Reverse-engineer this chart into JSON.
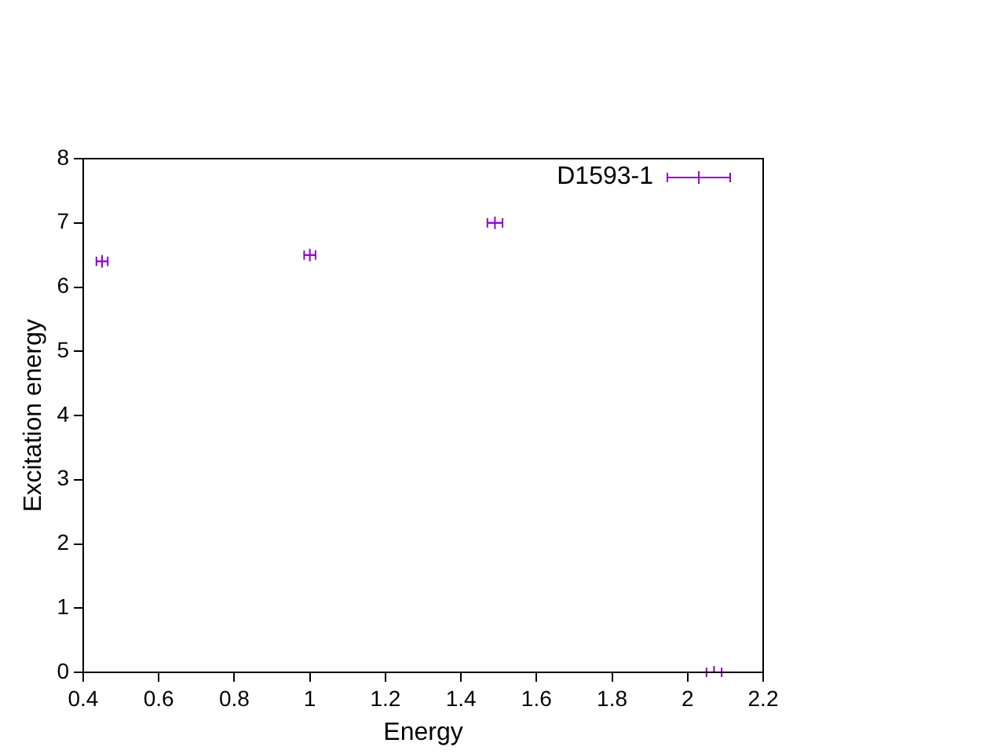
{
  "chart_data": {
    "type": "scatter",
    "xlabel": "Energy",
    "ylabel": "Excitation energy",
    "x": [
      0.45,
      1.0,
      1.49,
      2.07
    ],
    "series": [
      {
        "name": "D1593-1",
        "color": "#9400d3",
        "values": [
          6.4,
          6.5,
          7.0,
          0
        ],
        "xerrors": [
          0.015,
          0.015,
          0.02,
          0.02
        ]
      }
    ],
    "xlim": [
      0.4,
      2.2
    ],
    "xticks": [
      0.4,
      0.6,
      0.8,
      1,
      1.2,
      1.4,
      1.6,
      1.8,
      2,
      2.2
    ],
    "ylim": [
      0,
      8
    ],
    "yticks": [
      0,
      1,
      2,
      3,
      4,
      5,
      6,
      7,
      8
    ],
    "marker": "cross",
    "legend": "top right",
    "grid": false
  }
}
